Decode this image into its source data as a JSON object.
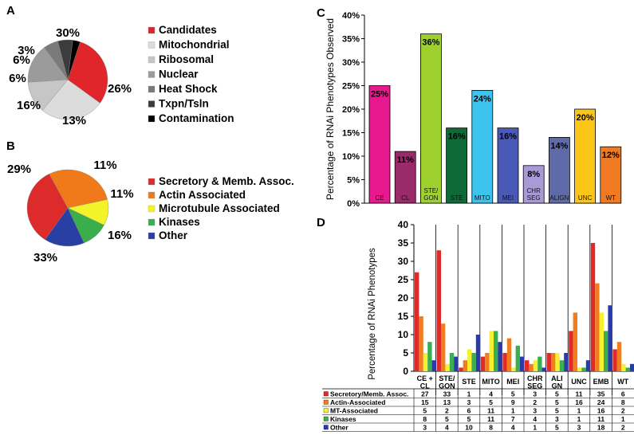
{
  "panels": {
    "A": "A",
    "B": "B",
    "C": "C",
    "D": "D"
  },
  "chart_data": [
    {
      "panel": "A",
      "type": "pie",
      "title": "",
      "categories": [
        "Candidates",
        "Mitochondrial",
        "Ribosomal",
        "Nuclear",
        "Heat Shock",
        "Txpn/Tsln",
        "Contamination"
      ],
      "values": [
        30,
        26,
        13,
        16,
        6,
        6,
        3
      ],
      "labels": [
        "30%",
        "26%",
        "13%",
        "16%",
        "6%",
        "6%",
        "3%"
      ],
      "colors": [
        "#e0262b",
        "#dcdcdc",
        "#c6c6c6",
        "#9b9b9b",
        "#7a7a7a",
        "#3c3c3c",
        "#000000"
      ],
      "legend_position": "right"
    },
    {
      "panel": "B",
      "type": "pie",
      "title": "",
      "categories": [
        "Secretory & Memb. Assoc.",
        "Actin Associated",
        "Microtubule Associated",
        "Kinases",
        "Other"
      ],
      "values": [
        33,
        29,
        11,
        11,
        16
      ],
      "labels": [
        "33%",
        "29%",
        "11%",
        "11%",
        "16%"
      ],
      "colors": [
        "#dd2a2a",
        "#f07a1a",
        "#f3f32a",
        "#3aae4a",
        "#2a3fa4"
      ],
      "legend_position": "right"
    },
    {
      "panel": "C",
      "type": "bar",
      "title": "",
      "ylabel": "Percentage of RNAi Phenotypes Observed",
      "xlabel": "",
      "ylim": [
        0,
        40
      ],
      "yticks": [
        "0%",
        "5%",
        "10%",
        "15%",
        "20%",
        "25%",
        "30%",
        "35%",
        "40%"
      ],
      "categories": [
        "CE",
        "CL",
        "STE/\nGON",
        "STE",
        "MITO",
        "MEI",
        "CHR\nSEG",
        "ALIGN",
        "UNC",
        "WT"
      ],
      "values": [
        25,
        11,
        36,
        16,
        24,
        16,
        8,
        14,
        20,
        12
      ],
      "value_labels": [
        "25%",
        "11%",
        "36%",
        "16%",
        "24%",
        "16%",
        "8%",
        "14%",
        "20%",
        "12%"
      ],
      "colors": [
        "#e8198e",
        "#9a2a6a",
        "#9fd12e",
        "#0e6b38",
        "#3cc4ef",
        "#4a59b5",
        "#a79ad6",
        "#5f6aa8",
        "#fcc618",
        "#f07a22"
      ]
    },
    {
      "panel": "D",
      "type": "bar",
      "title": "",
      "ylabel": "Percentage of RNAi Phenotypes",
      "xlabel": "",
      "ylim": [
        0,
        40
      ],
      "yticks": [
        "0",
        "5",
        "10",
        "15",
        "20",
        "25",
        "30",
        "35",
        "40"
      ],
      "categories": [
        "CE +\nCL",
        "STE/\nGON",
        "STE",
        "MITO",
        "MEI",
        "CHR\nSEG",
        "ALI\nGN",
        "UNC",
        "EMB",
        "WT"
      ],
      "series": [
        {
          "name": "Secretory/Memb. Assoc.",
          "color": "#e02a2a",
          "values": [
            27,
            33,
            1,
            4,
            5,
            3,
            5,
            11,
            35,
            6
          ]
        },
        {
          "name": "Actin-Associated",
          "color": "#f07d1e",
          "values": [
            15,
            13,
            3,
            5,
            9,
            2,
            5,
            16,
            24,
            8
          ]
        },
        {
          "name": "MT-Associated",
          "color": "#f5f030",
          "values": [
            5,
            2,
            6,
            11,
            1,
            3,
            5,
            1,
            16,
            2
          ]
        },
        {
          "name": "Kinases",
          "color": "#38b050",
          "values": [
            8,
            5,
            5,
            11,
            7,
            4,
            3,
            1,
            11,
            1
          ]
        },
        {
          "name": "Other",
          "color": "#2a3aa8",
          "values": [
            3,
            4,
            10,
            8,
            4,
            1,
            5,
            3,
            18,
            2
          ]
        }
      ]
    }
  ]
}
